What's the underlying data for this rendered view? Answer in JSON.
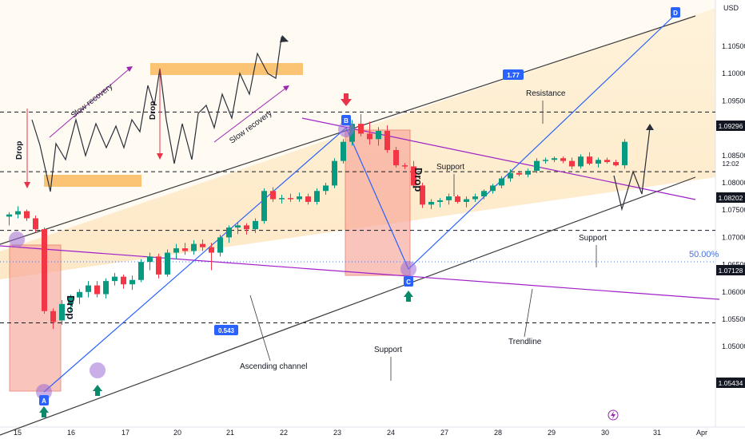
{
  "chart_data": {
    "type": "candlestick",
    "currency": "USD",
    "y_ticks": [
      "1.10500",
      "1.10000",
      "1.09500",
      "1.09000",
      "1.08500",
      "1.08000",
      "1.07500",
      "1.07000",
      "1.06500",
      "1.06000",
      "1.05500",
      "1.05000"
    ],
    "x_ticks": [
      "15",
      "16",
      "17",
      "20",
      "21",
      "22",
      "23",
      "24",
      "27",
      "28",
      "29",
      "30",
      "31",
      "Apr"
    ],
    "price_labels": {
      "p1": "1.09296",
      "p2": "1.08202",
      "p3": "1.07128",
      "p4": "1.05434",
      "countdown": "12:02"
    },
    "horizontal_levels": [
      1.09296,
      1.08202,
      1.07128,
      1.05434
    ],
    "fib_label": "50.00%",
    "fib_level": 1.0722,
    "points": [
      {
        "label": "A",
        "price": 1.0534
      },
      {
        "label": "B",
        "price": 1.0928
      },
      {
        "label": "C",
        "price": 1.0712
      },
      {
        "label": "D",
        "price": 1.1085
      }
    ],
    "ratios": [
      "1.77",
      "0.543"
    ],
    "annotations": {
      "resistance": "Resistance",
      "support_mid": "Support",
      "support_right": "Support",
      "support_bottom": "Support",
      "trendline": "Trendline",
      "ascending_channel": "Ascending channel",
      "drop_left": "Drop",
      "drop_mid": "Drop",
      "drop_inset1": "Drop",
      "drop_inset2": "Drop",
      "slow_recovery_1": "Slow recovery",
      "slow_recovery_2": "Slow recovery"
    },
    "candles": [
      {
        "o": 1.0738,
        "h": 1.0746,
        "l": 1.0722,
        "c": 1.0742
      },
      {
        "o": 1.0742,
        "h": 1.0757,
        "l": 1.0735,
        "c": 1.0748
      },
      {
        "o": 1.0748,
        "h": 1.0751,
        "l": 1.073,
        "c": 1.0735
      },
      {
        "o": 1.0735,
        "h": 1.074,
        "l": 1.071,
        "c": 1.0715
      },
      {
        "o": 1.0715,
        "h": 1.0718,
        "l": 1.056,
        "c": 1.0565
      },
      {
        "o": 1.0565,
        "h": 1.057,
        "l": 1.0532,
        "c": 1.0545
      },
      {
        "o": 1.0548,
        "h": 1.0585,
        "l": 1.054,
        "c": 1.0578
      },
      {
        "o": 1.0578,
        "h": 1.0595,
        "l": 1.0565,
        "c": 1.059
      },
      {
        "o": 1.059,
        "h": 1.0605,
        "l": 1.0578,
        "c": 1.06
      },
      {
        "o": 1.06,
        "h": 1.062,
        "l": 1.059,
        "c": 1.0612
      },
      {
        "o": 1.0612,
        "h": 1.062,
        "l": 1.059,
        "c": 1.0596
      },
      {
        "o": 1.0596,
        "h": 1.0625,
        "l": 1.0588,
        "c": 1.062
      },
      {
        "o": 1.062,
        "h": 1.0635,
        "l": 1.0612,
        "c": 1.0628
      },
      {
        "o": 1.0628,
        "h": 1.0632,
        "l": 1.0606,
        "c": 1.0614
      },
      {
        "o": 1.0614,
        "h": 1.063,
        "l": 1.0604,
        "c": 1.0622
      },
      {
        "o": 1.0622,
        "h": 1.066,
        "l": 1.0618,
        "c": 1.0655
      },
      {
        "o": 1.0655,
        "h": 1.0672,
        "l": 1.064,
        "c": 1.0665
      },
      {
        "o": 1.0665,
        "h": 1.067,
        "l": 1.0625,
        "c": 1.0632
      },
      {
        "o": 1.0632,
        "h": 1.0678,
        "l": 1.0628,
        "c": 1.0672
      },
      {
        "o": 1.0672,
        "h": 1.0688,
        "l": 1.066,
        "c": 1.068
      },
      {
        "o": 1.068,
        "h": 1.069,
        "l": 1.0668,
        "c": 1.0675
      },
      {
        "o": 1.0675,
        "h": 1.0695,
        "l": 1.0668,
        "c": 1.0688
      },
      {
        "o": 1.0688,
        "h": 1.0696,
        "l": 1.0675,
        "c": 1.0682
      },
      {
        "o": 1.0682,
        "h": 1.069,
        "l": 1.064,
        "c": 1.0672
      },
      {
        "o": 1.0672,
        "h": 1.0705,
        "l": 1.0665,
        "c": 1.07
      },
      {
        "o": 1.07,
        "h": 1.0722,
        "l": 1.069,
        "c": 1.0718
      },
      {
        "o": 1.0718,
        "h": 1.0728,
        "l": 1.0706,
        "c": 1.0722
      },
      {
        "o": 1.0722,
        "h": 1.0726,
        "l": 1.0705,
        "c": 1.0715
      },
      {
        "o": 1.0715,
        "h": 1.0735,
        "l": 1.0708,
        "c": 1.073
      },
      {
        "o": 1.073,
        "h": 1.079,
        "l": 1.0725,
        "c": 1.0785
      },
      {
        "o": 1.0785,
        "h": 1.0792,
        "l": 1.0765,
        "c": 1.077
      },
      {
        "o": 1.077,
        "h": 1.0778,
        "l": 1.0762,
        "c": 1.0772
      },
      {
        "o": 1.0772,
        "h": 1.078,
        "l": 1.0765,
        "c": 1.077
      },
      {
        "o": 1.077,
        "h": 1.0782,
        "l": 1.0765,
        "c": 1.0775
      },
      {
        "o": 1.0775,
        "h": 1.078,
        "l": 1.076,
        "c": 1.0765
      },
      {
        "o": 1.0765,
        "h": 1.079,
        "l": 1.076,
        "c": 1.0785
      },
      {
        "o": 1.0785,
        "h": 1.08,
        "l": 1.0778,
        "c": 1.0795
      },
      {
        "o": 1.0795,
        "h": 1.0845,
        "l": 1.079,
        "c": 1.084
      },
      {
        "o": 1.084,
        "h": 1.088,
        "l": 1.0835,
        "c": 1.0875
      },
      {
        "o": 1.0875,
        "h": 1.0915,
        "l": 1.0868,
        "c": 1.0908
      },
      {
        "o": 1.0908,
        "h": 1.0926,
        "l": 1.0885,
        "c": 1.089
      },
      {
        "o": 1.089,
        "h": 1.0912,
        "l": 1.087,
        "c": 1.088
      },
      {
        "o": 1.088,
        "h": 1.0902,
        "l": 1.0868,
        "c": 1.0895
      },
      {
        "o": 1.0895,
        "h": 1.0905,
        "l": 1.0855,
        "c": 1.086
      },
      {
        "o": 1.086,
        "h": 1.0866,
        "l": 1.0828,
        "c": 1.0832
      },
      {
        "o": 1.0832,
        "h": 1.0836,
        "l": 1.0825,
        "c": 1.083
      },
      {
        "o": 1.083,
        "h": 1.084,
        "l": 1.079,
        "c": 1.0795
      },
      {
        "o": 1.0795,
        "h": 1.08,
        "l": 1.0754,
        "c": 1.076
      },
      {
        "o": 1.076,
        "h": 1.077,
        "l": 1.0752,
        "c": 1.0765
      },
      {
        "o": 1.0765,
        "h": 1.0772,
        "l": 1.0755,
        "c": 1.0768
      },
      {
        "o": 1.0768,
        "h": 1.078,
        "l": 1.076,
        "c": 1.0775
      },
      {
        "o": 1.0775,
        "h": 1.0778,
        "l": 1.0762,
        "c": 1.0765
      },
      {
        "o": 1.0765,
        "h": 1.0775,
        "l": 1.0755,
        "c": 1.077
      },
      {
        "o": 1.077,
        "h": 1.078,
        "l": 1.0765,
        "c": 1.0775
      },
      {
        "o": 1.0775,
        "h": 1.0788,
        "l": 1.077,
        "c": 1.0785
      },
      {
        "o": 1.0785,
        "h": 1.0798,
        "l": 1.078,
        "c": 1.0795
      },
      {
        "o": 1.0795,
        "h": 1.0812,
        "l": 1.079,
        "c": 1.0808
      },
      {
        "o": 1.0808,
        "h": 1.0825,
        "l": 1.0802,
        "c": 1.0818
      },
      {
        "o": 1.0818,
        "h": 1.0822,
        "l": 1.0812,
        "c": 1.0815
      },
      {
        "o": 1.0815,
        "h": 1.0826,
        "l": 1.081,
        "c": 1.0822
      },
      {
        "o": 1.0822,
        "h": 1.0845,
        "l": 1.0818,
        "c": 1.084
      },
      {
        "o": 1.084,
        "h": 1.0846,
        "l": 1.0835,
        "c": 1.0842
      },
      {
        "o": 1.0842,
        "h": 1.0848,
        "l": 1.0838,
        "c": 1.0845
      },
      {
        "o": 1.0845,
        "h": 1.0848,
        "l": 1.0836,
        "c": 1.084
      },
      {
        "o": 1.084,
        "h": 1.0846,
        "l": 1.0825,
        "c": 1.083
      },
      {
        "o": 1.083,
        "h": 1.0852,
        "l": 1.0826,
        "c": 1.0848
      },
      {
        "o": 1.0848,
        "h": 1.0856,
        "l": 1.0832,
        "c": 1.0835
      },
      {
        "o": 1.0835,
        "h": 1.0846,
        "l": 1.0828,
        "c": 1.0842
      },
      {
        "o": 1.0842,
        "h": 1.0846,
        "l": 1.0835,
        "c": 1.0838
      },
      {
        "o": 1.0838,
        "h": 1.0842,
        "l": 1.083,
        "c": 1.0832
      },
      {
        "o": 1.0832,
        "h": 1.088,
        "l": 1.0826,
        "c": 1.0875
      }
    ]
  }
}
